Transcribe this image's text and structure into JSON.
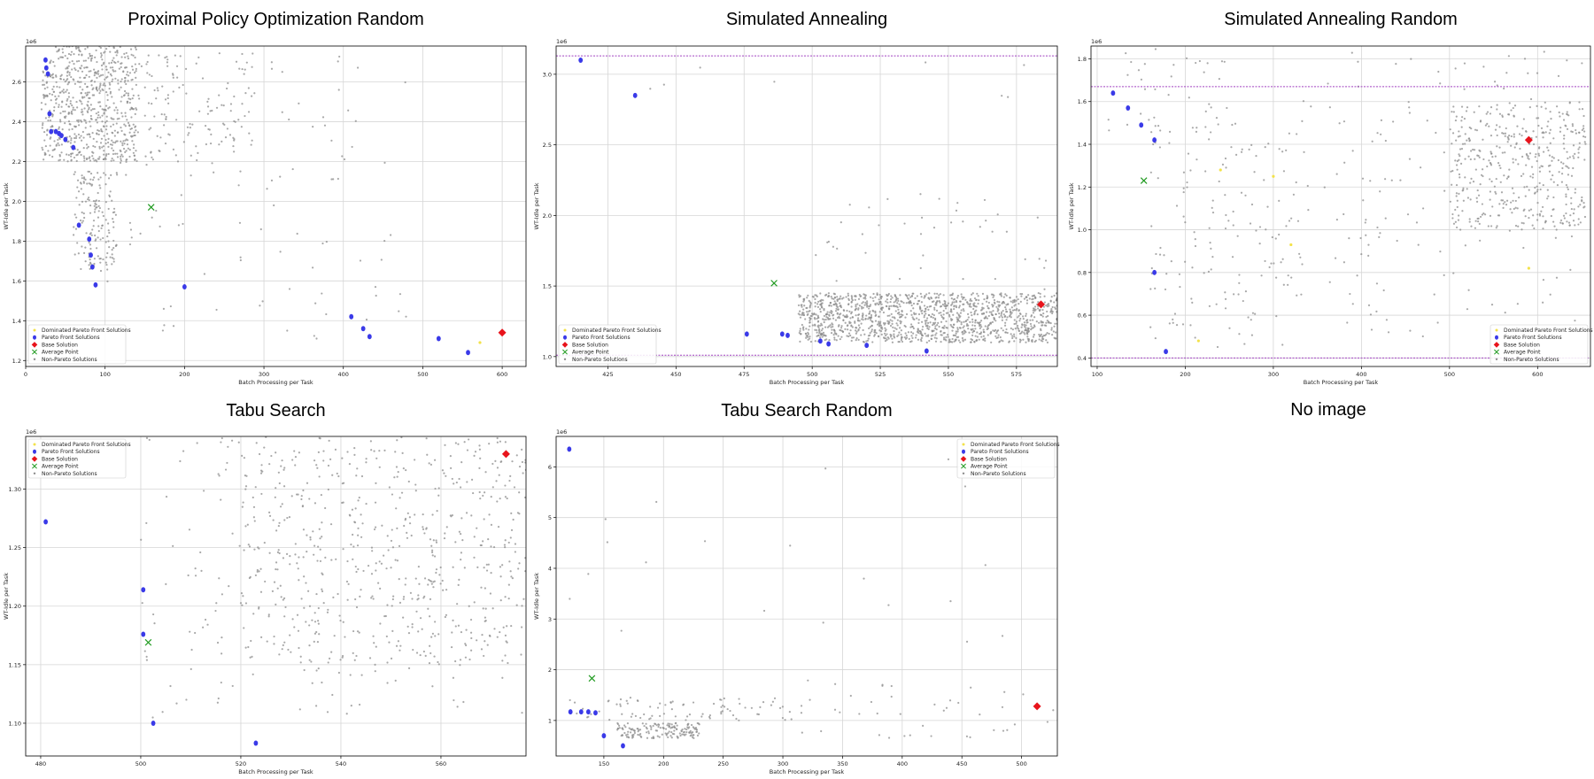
{
  "empty_panel": {
    "label": "No image"
  },
  "colors": {
    "pareto": "#3a3ae8",
    "dominated": "#f3e24a",
    "base": "#e8141c",
    "average": "#1f9a1f",
    "non_pareto": "#8c8c8c",
    "bound_line": "#a040c0",
    "grid": "#d6d6d6"
  },
  "legend_labels": [
    "Dominated Pareto Front Solutions",
    "Pareto Front Solutions",
    "Base Solution",
    "Average Point",
    "Non-Pareto Solutions"
  ],
  "chart_data": [
    {
      "type": "scatter",
      "title": "Proximal Policy Optimization Random",
      "xlabel": "Batch Processing per Task",
      "ylabel": "WT-Idle per Task",
      "y_multiplier": "1e6",
      "xlim": [
        0,
        630
      ],
      "ylim": [
        1.17,
        2.78
      ],
      "xticks": [
        0,
        100,
        200,
        300,
        400,
        500,
        600
      ],
      "xticklabels": [
        "0",
        "100",
        "200",
        "300",
        "400",
        "500",
        "600"
      ],
      "yticks": [
        1.2,
        1.4,
        1.6,
        1.8,
        2.0,
        2.2,
        2.4,
        2.6
      ],
      "yticklabels": [
        "1.2",
        "1.4",
        "1.6",
        "1.8",
        "2.0",
        "2.2",
        "2.4",
        "2.6"
      ],
      "grid": true,
      "legend_position": "lower-left",
      "bounds": [],
      "pareto": [
        [
          25,
          2.71
        ],
        [
          26,
          2.67
        ],
        [
          28,
          2.64
        ],
        [
          30,
          2.44
        ],
        [
          32,
          2.35
        ],
        [
          38,
          2.35
        ],
        [
          42,
          2.34
        ],
        [
          45,
          2.33
        ],
        [
          50,
          2.31
        ],
        [
          60,
          2.27
        ],
        [
          67,
          1.88
        ],
        [
          80,
          1.81
        ],
        [
          82,
          1.73
        ],
        [
          84,
          1.67
        ],
        [
          88,
          1.58
        ],
        [
          200,
          1.57
        ],
        [
          410,
          1.42
        ],
        [
          425,
          1.36
        ],
        [
          433,
          1.32
        ],
        [
          520,
          1.31
        ],
        [
          557,
          1.24
        ]
      ],
      "dominated": [
        [
          572,
          1.29
        ]
      ],
      "base": [
        [
          600,
          1.34
        ]
      ],
      "average": [
        [
          158,
          1.97
        ]
      ],
      "non_pareto_clusters": [
        {
          "x": [
            20,
            140
          ],
          "y": [
            2.2,
            2.78
          ],
          "n": 700
        },
        {
          "x": [
            60,
            115
          ],
          "y": [
            1.65,
            2.15
          ],
          "n": 160
        },
        {
          "x": [
            140,
            290
          ],
          "y": [
            2.2,
            2.75
          ],
          "n": 120
        },
        {
          "x": [
            100,
            480
          ],
          "y": [
            1.3,
            2.75
          ],
          "n": 110
        }
      ]
    },
    {
      "type": "scatter",
      "title": "Simulated Annealing",
      "xlabel": "Batch Processing per Task",
      "ylabel": "WT-Idle per Task",
      "y_multiplier": "1e6",
      "xlim": [
        406,
        590
      ],
      "ylim": [
        0.93,
        3.2
      ],
      "xticks": [
        425,
        450,
        475,
        500,
        525,
        550,
        575
      ],
      "xticklabels": [
        "425",
        "450",
        "475",
        "500",
        "525",
        "550",
        "575"
      ],
      "yticks": [
        1.0,
        1.5,
        2.0,
        2.5,
        3.0
      ],
      "yticklabels": [
        "1.0",
        "1.5",
        "2.0",
        "2.5",
        "3.0"
      ],
      "grid": true,
      "legend_position": "lower-left",
      "bounds": [
        3.13,
        1.01
      ],
      "pareto": [
        [
          415,
          3.1
        ],
        [
          435,
          2.85
        ],
        [
          476,
          1.16
        ],
        [
          489,
          1.16
        ],
        [
          491,
          1.15
        ],
        [
          503,
          1.11
        ],
        [
          506,
          1.09
        ],
        [
          520,
          1.08
        ],
        [
          542,
          1.04
        ]
      ],
      "dominated": [],
      "base": [
        [
          584,
          1.37
        ]
      ],
      "average": [
        [
          486,
          1.52
        ]
      ],
      "non_pareto_clusters": [
        {
          "x": [
            495,
            590
          ],
          "y": [
            1.1,
            1.45
          ],
          "n": 1400
        },
        {
          "x": [
            500,
            590
          ],
          "y": [
            1.45,
            2.2
          ],
          "n": 40
        },
        {
          "x": [
            440,
            580
          ],
          "y": [
            2.6,
            3.15
          ],
          "n": 8
        }
      ]
    },
    {
      "type": "scatter",
      "title": "Simulated Annealing Random",
      "xlabel": "Batch Processing per Task",
      "ylabel": "WT-Idle per Task",
      "y_multiplier": "1e6",
      "xlim": [
        93,
        660
      ],
      "ylim": [
        0.36,
        1.86
      ],
      "xticks": [
        100,
        200,
        300,
        400,
        500,
        600
      ],
      "xticklabels": [
        "100",
        "200",
        "300",
        "400",
        "500",
        "600"
      ],
      "yticks": [
        0.4,
        0.6,
        0.8,
        1.0,
        1.2,
        1.4,
        1.6,
        1.8
      ],
      "yticklabels": [
        "0.4",
        "0.6",
        "0.8",
        "1.0",
        "1.2",
        "1.4",
        "1.6",
        "1.8"
      ],
      "grid": true,
      "legend_position": "lower-right",
      "bounds": [
        1.67,
        0.4
      ],
      "pareto": [
        [
          118,
          1.64
        ],
        [
          135,
          1.57
        ],
        [
          150,
          1.49
        ],
        [
          165,
          1.42
        ],
        [
          165,
          0.8
        ],
        [
          178,
          0.43
        ]
      ],
      "dominated": [
        [
          215,
          0.48
        ],
        [
          240,
          1.28
        ],
        [
          300,
          1.25
        ],
        [
          320,
          0.93
        ],
        [
          590,
          0.82
        ]
      ],
      "base": [
        [
          590,
          1.42
        ]
      ],
      "average": [
        [
          153,
          1.23
        ]
      ],
      "non_pareto_clusters": [
        {
          "x": [
            500,
            655
          ],
          "y": [
            1.0,
            1.6
          ],
          "n": 420
        },
        {
          "x": [
            110,
            250
          ],
          "y": [
            1.45,
            1.85
          ],
          "n": 40
        },
        {
          "x": [
            160,
            330
          ],
          "y": [
            0.45,
            1.5
          ],
          "n": 150
        },
        {
          "x": [
            330,
            655
          ],
          "y": [
            0.5,
            1.85
          ],
          "n": 150
        }
      ]
    },
    {
      "type": "scatter",
      "title": "Tabu Search",
      "xlabel": "Batch Processing per Task",
      "ylabel": "WT-Idle per Task",
      "y_multiplier": "1e6",
      "xlim": [
        477,
        577
      ],
      "ylim": [
        1.072,
        1.345
      ],
      "xticks": [
        480,
        500,
        520,
        540,
        560
      ],
      "xticklabels": [
        "480",
        "500",
        "520",
        "540",
        "560"
      ],
      "yticks": [
        1.1,
        1.15,
        1.2,
        1.25,
        1.3
      ],
      "yticklabels": [
        "1.10",
        "1.15",
        "1.20",
        "1.25",
        "1.30"
      ],
      "grid": true,
      "legend_position": "top-left",
      "bounds": [],
      "pareto": [
        [
          481,
          1.272
        ],
        [
          500.5,
          1.214
        ],
        [
          500.5,
          1.176
        ],
        [
          502.5,
          1.1
        ],
        [
          523,
          1.083
        ]
      ],
      "dominated": [],
      "base": [
        [
          573,
          1.33
        ]
      ],
      "average": [
        [
          501.5,
          1.169
        ]
      ],
      "non_pareto_clusters": [
        {
          "x": [
            520,
            577
          ],
          "y": [
            1.15,
            1.345
          ],
          "n": 520
        },
        {
          "x": [
            500,
            577
          ],
          "y": [
            1.1,
            1.345
          ],
          "n": 200
        }
      ]
    },
    {
      "type": "scatter",
      "title": "Tabu Search Random",
      "xlabel": "Batch Processing per Task",
      "ylabel": "WT-Idle per Task",
      "y_multiplier": "1e6",
      "xlim": [
        110,
        530
      ],
      "ylim": [
        0.3,
        6.6
      ],
      "xticks": [
        150,
        200,
        250,
        300,
        350,
        400,
        450,
        500
      ],
      "xticklabels": [
        "150",
        "200",
        "250",
        "300",
        "350",
        "400",
        "450",
        "500"
      ],
      "yticks": [
        1,
        2,
        3,
        4,
        5,
        6
      ],
      "yticklabels": [
        "1",
        "2",
        "3",
        "4",
        "5",
        "6"
      ],
      "grid": true,
      "legend_position": "top-right",
      "bounds": [],
      "pareto": [
        [
          121,
          6.35
        ],
        [
          122,
          1.17
        ],
        [
          131,
          1.17
        ],
        [
          137,
          1.17
        ],
        [
          143,
          1.15
        ],
        [
          150,
          0.7
        ],
        [
          166,
          0.5
        ]
      ],
      "dominated": [],
      "base": [
        [
          513,
          1.28
        ]
      ],
      "average": [
        [
          140,
          1.83
        ]
      ],
      "non_pareto_clusters": [
        {
          "x": [
            160,
            230
          ],
          "y": [
            0.65,
            0.95
          ],
          "n": 160
        },
        {
          "x": [
            120,
            300
          ],
          "y": [
            1.0,
            1.45
          ],
          "n": 80
        },
        {
          "x": [
            300,
            530
          ],
          "y": [
            0.6,
            1.8
          ],
          "n": 45
        },
        {
          "x": [
            120,
            530
          ],
          "y": [
            2.5,
            6.2
          ],
          "n": 20
        }
      ]
    }
  ]
}
